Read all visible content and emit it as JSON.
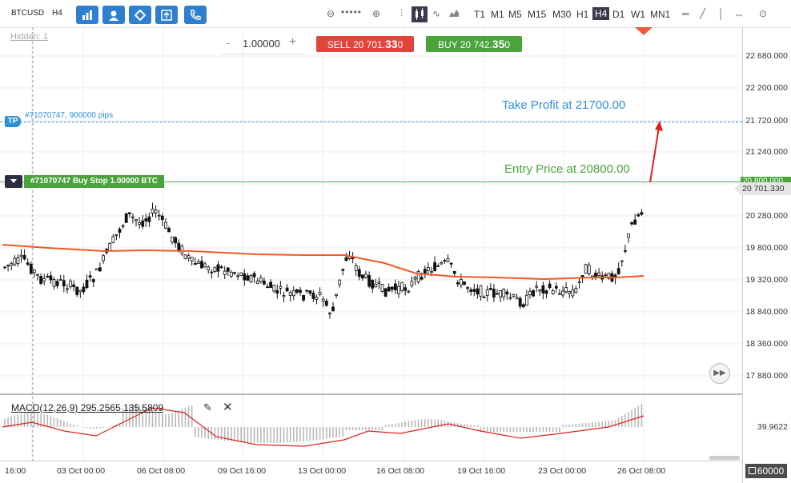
{
  "symbol": "BTCUSD",
  "timeframe_label": "H4",
  "hidden_label": "Hidden: 1",
  "toolbar": {
    "buttons": [
      "bar-chart-icon",
      "person-icon",
      "diamond-icon",
      "export-icon",
      "phone-icon"
    ],
    "timeframes": [
      "T1",
      "M1",
      "M5",
      "M15",
      "M30",
      "H1",
      "H4",
      "D1",
      "W1",
      "MN1"
    ],
    "active_timeframe": "H4"
  },
  "order": {
    "quantity": "1.00000",
    "minus": "-",
    "plus": "+",
    "sell_prefix": "SELL 20 701.",
    "sell_big": "33",
    "sell_suffix": "0",
    "buy_prefix": "BUY 20 742.",
    "buy_big": "35",
    "buy_suffix": "0"
  },
  "annotations": {
    "take_profit": "Take Profit at 21700.00",
    "entry_price": "Entry Price at 20800.00",
    "tp_badge": "TP",
    "tp_line_label": "#71070747, 900000 pips",
    "order_line_label": "#71070747 Buy Stop 1.00000 BTC",
    "entry_price_tag": "20 800.000",
    "current_price_tag": "20 701.330"
  },
  "y_axis": [
    "22 680.000",
    "22 200.000",
    "21 720.000",
    "21 240.000",
    "20 280.000",
    "19 800.000",
    "19 320.000",
    "18 840.000",
    "18 360.000",
    "17 880.000"
  ],
  "macd": {
    "label": "MACD(12,26,9) 295.2565 135.5809",
    "axis_value": "39.9622"
  },
  "x_axis": [
    "16:00",
    "03 Oct 00:00",
    "06 Oct 08:00",
    "09 Oct 16:00",
    "13 Oct 00:00",
    "16 Oct 08:00",
    "19 Oct 16:00",
    "23 Oct 00:00",
    "26 Oct 08:00"
  ],
  "bottom_right": "60000",
  "colors": {
    "sell": "#e0443a",
    "buy": "#4aa33b",
    "ma_line": "#f05a24",
    "tp_line": "#2f8fd8",
    "entry_line": "#4caf50",
    "annotation_blue": "#2f8fd8",
    "annotation_green": "#4aa33b",
    "arrow": "#e0201a",
    "macd_signal": "#e02020",
    "macd_hist": "#b8b8b8",
    "toolbar_button": "#2f7fd0"
  }
}
